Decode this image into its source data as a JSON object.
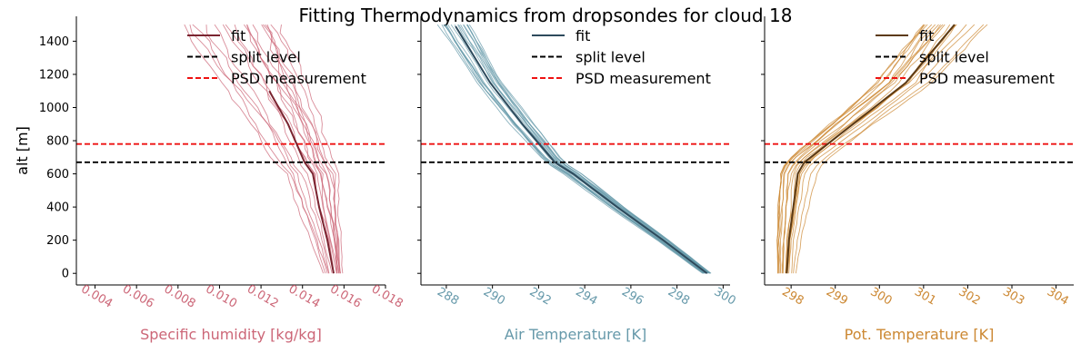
{
  "figure_title": "Fitting Thermodynamics from dropsondes for cloud 18",
  "chart_data": [
    {
      "type": "line",
      "panel": "specific-humidity",
      "title": "",
      "xlabel": "Specific humidity [kg/kg]",
      "ylabel": "alt [m]",
      "xlim": [
        0.0031,
        0.018
      ],
      "ylim": [
        -70,
        1550
      ],
      "xticks": [
        "0.004",
        "0.006",
        "0.008",
        "0.010",
        "0.012",
        "0.014",
        "0.016",
        "0.018"
      ],
      "xtick_values": [
        0.004,
        0.006,
        0.008,
        0.01,
        0.012,
        0.014,
        0.016,
        0.018
      ],
      "yticks": [
        "0",
        "200",
        "400",
        "600",
        "800",
        "1000",
        "1200",
        "1400"
      ],
      "ytick_values": [
        0,
        200,
        400,
        600,
        800,
        1000,
        1200,
        1400
      ],
      "color": "#cc6677",
      "fit_color": "#7a2430",
      "fit": {
        "x": [
          0.0155,
          0.0152,
          0.0148,
          0.0145,
          0.0141,
          0.0133,
          0.0124
        ],
        "y": [
          0,
          200,
          400,
          600,
          670,
          900,
          1100
        ]
      },
      "split_level": 670,
      "psd_measurement": 780,
      "legend": [
        "fit",
        "split level",
        "PSD measurement"
      ],
      "legend_position": "top-right"
    },
    {
      "type": "line",
      "panel": "air-temperature",
      "title": "",
      "xlabel": "Air Temperature [K]",
      "ylabel": "",
      "xlim": [
        286.9,
        300.3
      ],
      "ylim": [
        -70,
        1550
      ],
      "xticks": [
        "288",
        "290",
        "292",
        "294",
        "296",
        "298",
        "300"
      ],
      "xtick_values": [
        288,
        290,
        292,
        294,
        296,
        298,
        300
      ],
      "color": "#6699aa",
      "fit_color": "#2d4a5c",
      "fit": {
        "x": [
          299.3,
          297.4,
          295.4,
          293.5,
          292.7,
          291.3,
          289.9,
          288.4
        ],
        "y": [
          0,
          200,
          400,
          600,
          670,
          900,
          1150,
          1490
        ]
      },
      "split_level": 670,
      "psd_measurement": 780,
      "legend": [
        "fit",
        "split level",
        "PSD measurement"
      ],
      "legend_position": "top-right"
    },
    {
      "type": "line",
      "panel": "potential-temperature",
      "title": "",
      "xlabel": "Pot. Temperature [K]",
      "ylabel": "",
      "xlim": [
        297.4,
        304.4
      ],
      "ylim": [
        -70,
        1550
      ],
      "xticks": [
        "298",
        "299",
        "300",
        "301",
        "302",
        "303",
        "304"
      ],
      "xtick_values": [
        298,
        299,
        300,
        301,
        302,
        303,
        304
      ],
      "color": "#cc8833",
      "fit_color": "#5c3a14",
      "fit": {
        "x": [
          297.9,
          297.95,
          298.05,
          298.15,
          298.3,
          299.4,
          300.6,
          301.7
        ],
        "y": [
          0,
          200,
          400,
          600,
          670,
          900,
          1150,
          1500
        ]
      },
      "split_level": 670,
      "psd_measurement": 780,
      "legend": [
        "fit",
        "split level",
        "PSD measurement"
      ],
      "legend_position": "top-right"
    }
  ]
}
